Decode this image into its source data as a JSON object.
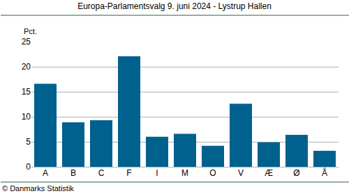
{
  "chart_data": {
    "type": "bar",
    "title": "Europa-Parlamentsvalg 9. juni 2024 - Lystrup Hallen",
    "y_label": "Pct.",
    "source": "© Danmarks Statistik",
    "categories": [
      "A",
      "B",
      "C",
      "F",
      "I",
      "M",
      "O",
      "V",
      "Æ",
      "Ø",
      "Å"
    ],
    "values": [
      16.6,
      8.9,
      9.3,
      22.1,
      6.0,
      6.6,
      4.2,
      12.6,
      4.9,
      6.4,
      3.2
    ],
    "color": "#00618f",
    "ylim": [
      0,
      25
    ],
    "yticks": [
      0,
      5,
      10,
      15,
      20,
      25
    ],
    "grid": true
  }
}
